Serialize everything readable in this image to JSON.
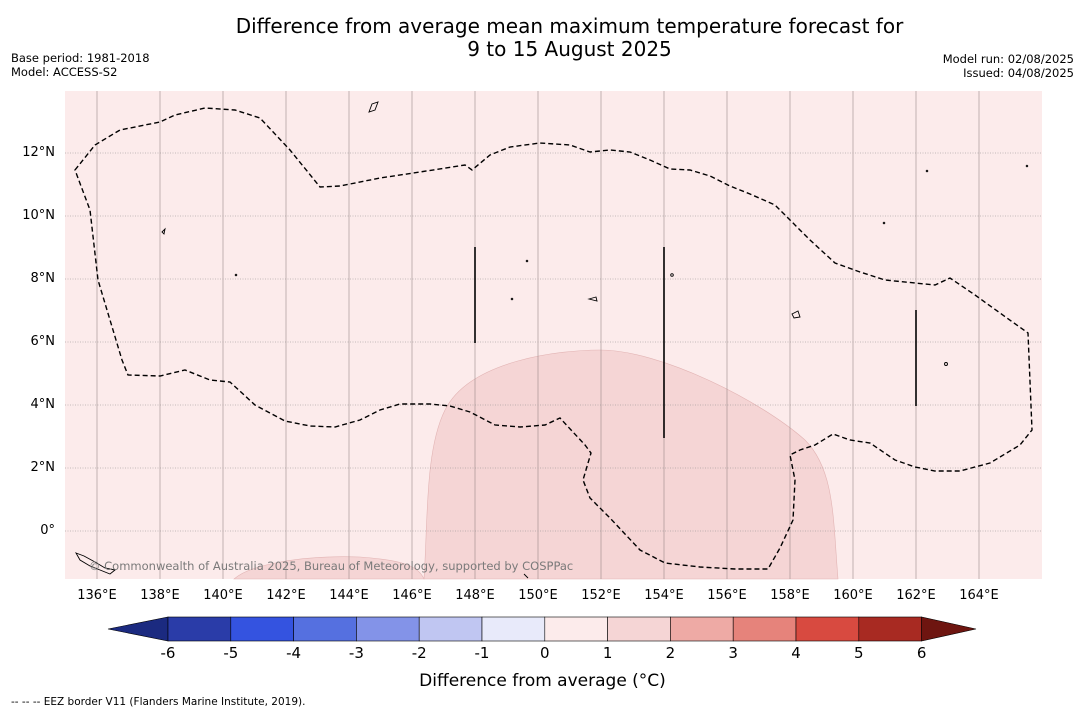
{
  "title_line1": "Difference from average mean maximum temperature forecast for",
  "title_line2": "9 to 15 August 2025",
  "meta_left": [
    "Base period: 1981-2018",
    "Model: ACCESS-S2"
  ],
  "meta_right": [
    "Model run: 02/08/2025",
    "Issued: 04/08/2025"
  ],
  "copyright": "© Commonwealth of Australia 2025, Bureau of Meteorology, supported by COSPPac",
  "lat_labels": [
    "12°N",
    "10°N",
    "8°N",
    "6°N",
    "4°N",
    "2°N",
    "0°"
  ],
  "lon_labels": [
    "136°E",
    "138°E",
    "140°E",
    "142°E",
    "144°E",
    "146°E",
    "148°E",
    "150°E",
    "152°E",
    "154°E",
    "156°E",
    "158°E",
    "160°E",
    "162°E",
    "164°E"
  ],
  "colorbar": {
    "ticks": [
      "-6",
      "-5",
      "-4",
      "-3",
      "-2",
      "-1",
      "0",
      "1",
      "2",
      "3",
      "4",
      "5",
      "6"
    ],
    "colors": [
      "#1b2a80",
      "#2a3ca8",
      "#3453e0",
      "#5570e0",
      "#8393e8",
      "#c0c6f2",
      "#e8eafa",
      "#fcebeb",
      "#f5d5d5",
      "#eeaaa5",
      "#e6837b",
      "#d84a40",
      "#a82a22",
      "#6e1510"
    ],
    "title": "Difference from average (°C)"
  },
  "background_fill_color": "#fcebeb",
  "warm_patch_color": "#f5d5d5",
  "footer": "-- -- -- EEZ border V11 (Flanders Marine Institute, 2019)."
}
